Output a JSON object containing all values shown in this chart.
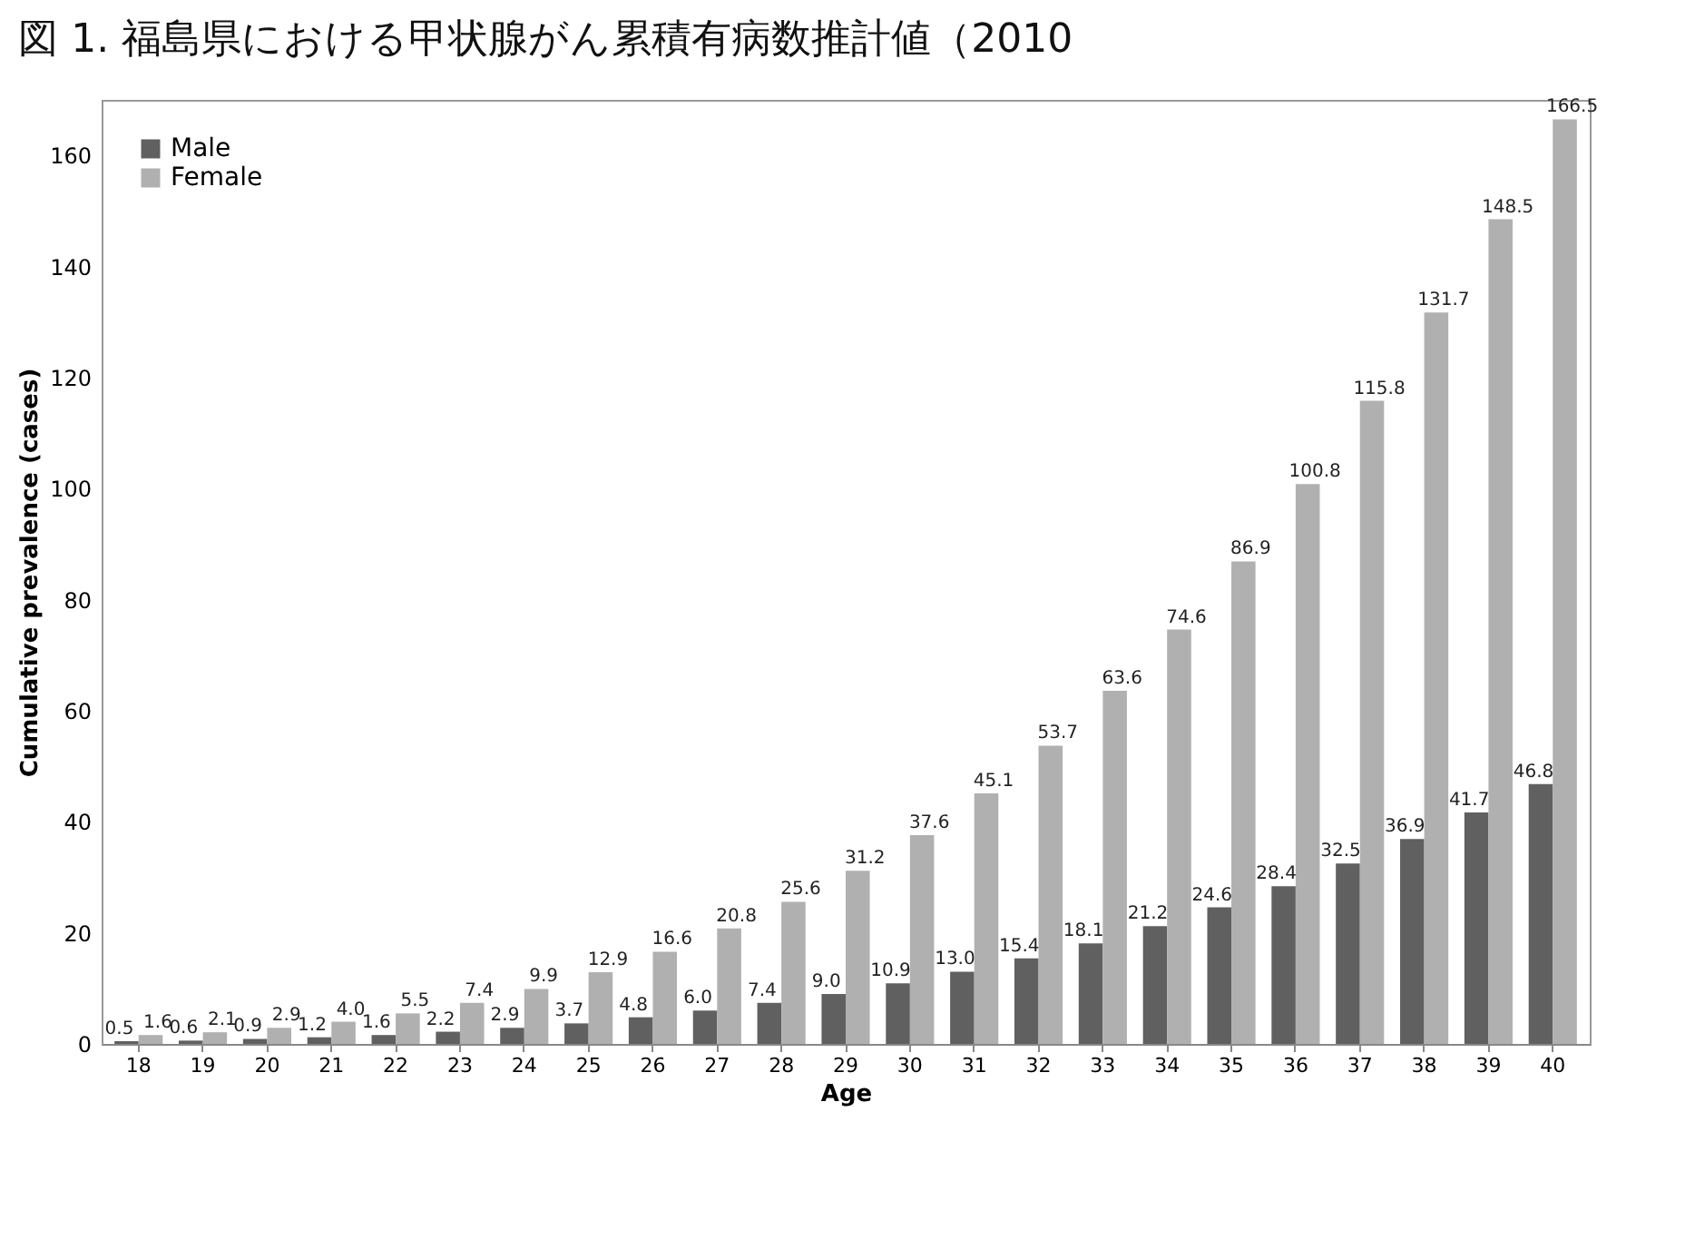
{
  "chart_data": {
    "type": "bar",
    "title": "図 1. 福島県における甲状腺がん累積有病数推計値（2010",
    "xlabel": "Age",
    "ylabel": "Cumulative prevalence (cases)",
    "categories": [
      "18",
      "19",
      "20",
      "21",
      "22",
      "23",
      "24",
      "25",
      "26",
      "27",
      "28",
      "29",
      "30",
      "31",
      "32",
      "33",
      "34",
      "35",
      "36",
      "37",
      "38",
      "39",
      "40"
    ],
    "series": [
      {
        "name": "Male",
        "color": "#606060",
        "values": [
          0.5,
          0.6,
          0.9,
          1.2,
          1.6,
          2.2,
          2.9,
          3.7,
          4.8,
          6.0,
          7.4,
          9.0,
          10.9,
          13.0,
          15.4,
          18.1,
          21.2,
          24.6,
          28.4,
          32.5,
          36.9,
          41.7,
          46.8
        ],
        "value_labels": [
          "0.5",
          "0.6",
          "0.9",
          "1.2",
          "1.6",
          "2.2",
          "2.9",
          "3.7",
          "4.8",
          "6.0",
          "7.4",
          "9.0",
          "10.9",
          "13.0",
          "15.4",
          "18.1",
          "21.2",
          "24.6",
          "28.4",
          "32.5",
          "36.9",
          "41.7",
          "46.8"
        ]
      },
      {
        "name": "Female",
        "color": "#b0b0b0",
        "values": [
          1.6,
          2.1,
          2.9,
          4.0,
          5.5,
          7.4,
          9.9,
          12.9,
          16.6,
          20.8,
          25.6,
          31.2,
          37.6,
          45.1,
          53.7,
          63.6,
          74.6,
          86.9,
          100.8,
          115.8,
          131.7,
          148.5,
          166.5
        ],
        "value_labels": [
          "1.6",
          "2.1",
          "2.9",
          "4.0",
          "5.5",
          "7.4",
          "9.9",
          "12.9",
          "16.6",
          "20.8",
          "25.6",
          "31.2",
          "37.6",
          "45.1",
          "53.7",
          "63.6",
          "74.6",
          "86.9",
          "100.8",
          "115.8",
          "131.7",
          "148.5",
          "166.5"
        ]
      }
    ],
    "ylim": [
      0,
      170
    ],
    "yticks": [
      0,
      20,
      40,
      60,
      80,
      100,
      120,
      140,
      160
    ],
    "grid": false,
    "legend": "top left"
  }
}
